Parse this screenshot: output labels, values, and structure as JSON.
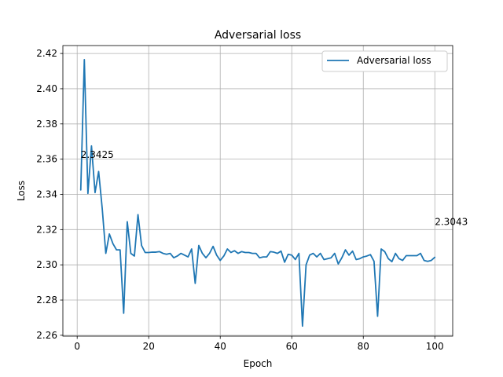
{
  "chart_data": {
    "type": "line",
    "title": "Adversarial loss",
    "xlabel": "Epoch",
    "ylabel": "Loss",
    "xlim": [
      -4,
      105
    ],
    "ylim": [
      2.2595,
      2.4245
    ],
    "xticks": [
      0,
      20,
      40,
      60,
      80,
      100
    ],
    "yticks": [
      2.26,
      2.28,
      2.3,
      2.32,
      2.34,
      2.36,
      2.38,
      2.4,
      2.42
    ],
    "ytick_labels": [
      "2.26",
      "2.28",
      "2.30",
      "2.32",
      "2.34",
      "2.36",
      "2.38",
      "2.40",
      "2.42"
    ],
    "grid": true,
    "legend_position": "top-right",
    "series": [
      {
        "name": "Adversarial loss",
        "color": "#1f77b4",
        "x": [
          1,
          2,
          3,
          4,
          5,
          6,
          7,
          8,
          9,
          10,
          11,
          12,
          13,
          14,
          15,
          16,
          17,
          18,
          19,
          20,
          21,
          22,
          23,
          24,
          25,
          26,
          27,
          28,
          29,
          30,
          31,
          32,
          33,
          34,
          35,
          36,
          37,
          38,
          39,
          40,
          41,
          42,
          43,
          44,
          45,
          46,
          47,
          48,
          49,
          50,
          51,
          52,
          53,
          54,
          55,
          56,
          57,
          58,
          59,
          60,
          61,
          62,
          63,
          64,
          65,
          66,
          67,
          68,
          69,
          70,
          71,
          72,
          73,
          74,
          75,
          76,
          77,
          78,
          79,
          80,
          81,
          82,
          83,
          84,
          85,
          86,
          87,
          88,
          89,
          90,
          91,
          92,
          93,
          94,
          95,
          96,
          97,
          98,
          99,
          100
        ],
        "values": [
          2.3425,
          2.4165,
          2.3405,
          2.3675,
          2.341,
          2.353,
          2.332,
          2.3065,
          2.3175,
          2.312,
          2.3085,
          2.3085,
          2.2725,
          2.3245,
          2.3065,
          2.305,
          2.3285,
          2.311,
          2.307,
          2.307,
          2.3072,
          2.3072,
          2.3075,
          2.3065,
          2.306,
          2.3065,
          2.304,
          2.305,
          2.3065,
          2.3055,
          2.3045,
          2.309,
          2.2895,
          2.311,
          2.3065,
          2.304,
          2.3065,
          2.3105,
          2.3055,
          2.3025,
          2.305,
          2.309,
          2.307,
          2.308,
          2.3065,
          2.3075,
          2.307,
          2.307,
          2.3065,
          2.3065,
          2.304,
          2.3045,
          2.3045,
          2.3075,
          2.3072,
          2.3065,
          2.3078,
          2.3015,
          2.306,
          2.3055,
          2.303,
          2.3065,
          2.2652,
          2.3,
          2.3055,
          2.3065,
          2.3045,
          2.3065,
          2.303,
          2.3035,
          2.304,
          2.3065,
          2.3005,
          2.304,
          2.3085,
          2.3055,
          2.3078,
          2.303,
          2.3035,
          2.3045,
          2.305,
          2.3058,
          2.302,
          2.2708,
          2.309,
          2.3075,
          2.3035,
          2.3018,
          2.3065,
          2.3035,
          2.3025,
          2.3052,
          2.3052,
          2.3052,
          2.3052,
          2.3065,
          2.3025,
          2.302,
          2.3025,
          2.3043
        ]
      }
    ],
    "annotations": [
      {
        "text": "2.3425",
        "x": 1,
        "y": 2.3625,
        "color": "#008000"
      },
      {
        "text": "2.3043",
        "x": 100,
        "y": 2.3243,
        "color": "#ff0000"
      }
    ]
  }
}
